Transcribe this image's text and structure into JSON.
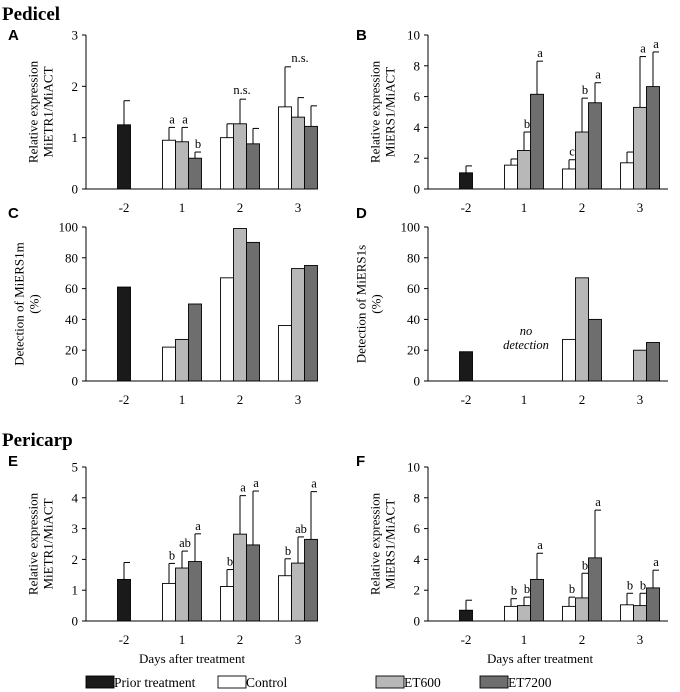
{
  "sections": {
    "pedicel": "Pedicel",
    "pericarp": "Pericarp"
  },
  "colors": {
    "prior": "#1a1a1a",
    "control": "#ffffff",
    "et600": "#b8b8b8",
    "et7200": "#6e6e6e",
    "axis": "#000000"
  },
  "legend": [
    {
      "name": "Prior treatment",
      "key": "prior"
    },
    {
      "name": "Control",
      "key": "control"
    },
    {
      "name": "ET600",
      "key": "et600"
    },
    {
      "name": "ET7200",
      "key": "et7200"
    }
  ],
  "xlabel_text": "Days after treatment",
  "chart_data": [
    {
      "panel": "A",
      "type": "bar",
      "title": "",
      "ylabel": "Relative expression MiETR1/MiACT",
      "xlabel": "",
      "categories": [
        "-2",
        "1",
        "2",
        "3"
      ],
      "ylim": [
        0,
        3
      ],
      "yticks": [
        0,
        1,
        2,
        3
      ],
      "prior": {
        "value": 1.25,
        "err": 0.47
      },
      "series": [
        {
          "name": "Control",
          "values": [
            null,
            0.95,
            1.0,
            1.6
          ],
          "err": [
            null,
            0.25,
            0.27,
            0.78
          ],
          "sig": [
            null,
            "a",
            "",
            ""
          ]
        },
        {
          "name": "ET600",
          "values": [
            null,
            0.92,
            1.27,
            1.4
          ],
          "err": [
            null,
            0.28,
            0.48,
            0.38
          ],
          "sig": [
            null,
            "a",
            "",
            ""
          ]
        },
        {
          "name": "ET7200",
          "values": [
            null,
            0.6,
            0.88,
            1.22
          ],
          "err": [
            null,
            0.12,
            0.3,
            0.4
          ],
          "sig": [
            null,
            "b",
            "",
            ""
          ]
        }
      ],
      "group_notes": [
        null,
        null,
        "n.s.",
        "n.s."
      ]
    },
    {
      "panel": "B",
      "type": "bar",
      "title": "",
      "ylabel": "Relative expression MiERS1/MiACT",
      "xlabel": "",
      "categories": [
        "-2",
        "1",
        "2",
        "3"
      ],
      "ylim": [
        0,
        10
      ],
      "yticks": [
        0,
        2,
        4,
        6,
        8,
        10
      ],
      "prior": {
        "value": 1.05,
        "err": 0.45
      },
      "series": [
        {
          "name": "Control",
          "values": [
            null,
            1.55,
            1.3,
            1.7
          ],
          "err": [
            null,
            0.4,
            0.6,
            0.7
          ],
          "sig": [
            null,
            "",
            "c",
            ""
          ]
        },
        {
          "name": "ET600",
          "values": [
            null,
            2.5,
            3.7,
            5.3
          ],
          "err": [
            null,
            1.2,
            2.2,
            3.3
          ],
          "sig": [
            null,
            "b",
            "b",
            "a"
          ]
        },
        {
          "name": "ET7200",
          "values": [
            null,
            6.15,
            5.6,
            6.65
          ],
          "err": [
            null,
            2.15,
            1.3,
            2.25
          ],
          "sig": [
            null,
            "a",
            "a",
            "a"
          ]
        }
      ],
      "group_notes": [
        null,
        null,
        null,
        null
      ]
    },
    {
      "panel": "C",
      "type": "bar",
      "title": "",
      "ylabel": "Detection of MiERS1m (%)",
      "xlabel": "",
      "categories": [
        "-2",
        "1",
        "2",
        "3"
      ],
      "ylim": [
        0,
        100
      ],
      "yticks": [
        0,
        20,
        40,
        60,
        80,
        100
      ],
      "prior": {
        "value": 61
      },
      "series": [
        {
          "name": "Control",
          "values": [
            null,
            22,
            67,
            36
          ]
        },
        {
          "name": "ET600",
          "values": [
            null,
            27,
            99,
            73
          ]
        },
        {
          "name": "ET7200",
          "values": [
            null,
            50,
            90,
            75
          ]
        }
      ],
      "annotations": []
    },
    {
      "panel": "D",
      "type": "bar",
      "title": "",
      "ylabel": "Detection of MiERS1s (%)",
      "xlabel": "",
      "categories": [
        "-2",
        "1",
        "2",
        "3"
      ],
      "ylim": [
        0,
        100
      ],
      "yticks": [
        0,
        20,
        40,
        60,
        80,
        100
      ],
      "prior": {
        "value": 19
      },
      "series": [
        {
          "name": "Control",
          "values": [
            null,
            null,
            27,
            0
          ]
        },
        {
          "name": "ET600",
          "values": [
            null,
            null,
            67,
            20
          ]
        },
        {
          "name": "ET7200",
          "values": [
            null,
            null,
            40,
            25
          ]
        }
      ],
      "annotations": [
        "no detection"
      ]
    },
    {
      "panel": "E",
      "type": "bar",
      "title": "",
      "ylabel": "Relative expression MiETR1/MiACT",
      "xlabel": "Days after treatment",
      "categories": [
        "-2",
        "1",
        "2",
        "3"
      ],
      "ylim": [
        0,
        5
      ],
      "yticks": [
        0,
        1,
        2,
        3,
        4,
        5
      ],
      "prior": {
        "value": 1.35,
        "err": 0.55
      },
      "series": [
        {
          "name": "Control",
          "values": [
            null,
            1.22,
            1.12,
            1.47
          ],
          "err": [
            null,
            0.65,
            0.55,
            0.55
          ],
          "sig": [
            null,
            "b",
            "b",
            "b"
          ]
        },
        {
          "name": "ET600",
          "values": [
            null,
            1.72,
            2.82,
            1.88
          ],
          "err": [
            null,
            0.55,
            1.25,
            0.85
          ],
          "sig": [
            null,
            "ab",
            "a",
            "ab"
          ]
        },
        {
          "name": "ET7200",
          "values": [
            null,
            1.93,
            2.47,
            2.65
          ],
          "err": [
            null,
            0.9,
            1.75,
            1.55
          ],
          "sig": [
            null,
            "a",
            "a",
            "a"
          ]
        }
      ],
      "group_notes": [
        null,
        null,
        null,
        null
      ]
    },
    {
      "panel": "F",
      "type": "bar",
      "title": "",
      "ylabel": "Relative expression MiERS1/MiACT",
      "xlabel": "Days after treatment",
      "categories": [
        "-2",
        "1",
        "2",
        "3"
      ],
      "ylim": [
        0,
        10
      ],
      "yticks": [
        0,
        2,
        4,
        6,
        8,
        10
      ],
      "prior": {
        "value": 0.7,
        "err": 0.65
      },
      "series": [
        {
          "name": "Control",
          "values": [
            null,
            0.95,
            0.95,
            1.05
          ],
          "err": [
            null,
            0.5,
            0.6,
            0.75
          ],
          "sig": [
            null,
            "b",
            "b",
            "b"
          ]
        },
        {
          "name": "ET600",
          "values": [
            null,
            1.0,
            1.5,
            1.0
          ],
          "err": [
            null,
            0.55,
            1.6,
            0.8
          ],
          "sig": [
            null,
            "b",
            "b",
            "b"
          ]
        },
        {
          "name": "ET7200",
          "values": [
            null,
            2.7,
            4.1,
            2.15
          ],
          "err": [
            null,
            1.7,
            3.1,
            1.15
          ],
          "sig": [
            null,
            "a",
            "a",
            "a"
          ]
        }
      ],
      "group_notes": [
        null,
        null,
        null,
        null
      ]
    }
  ]
}
